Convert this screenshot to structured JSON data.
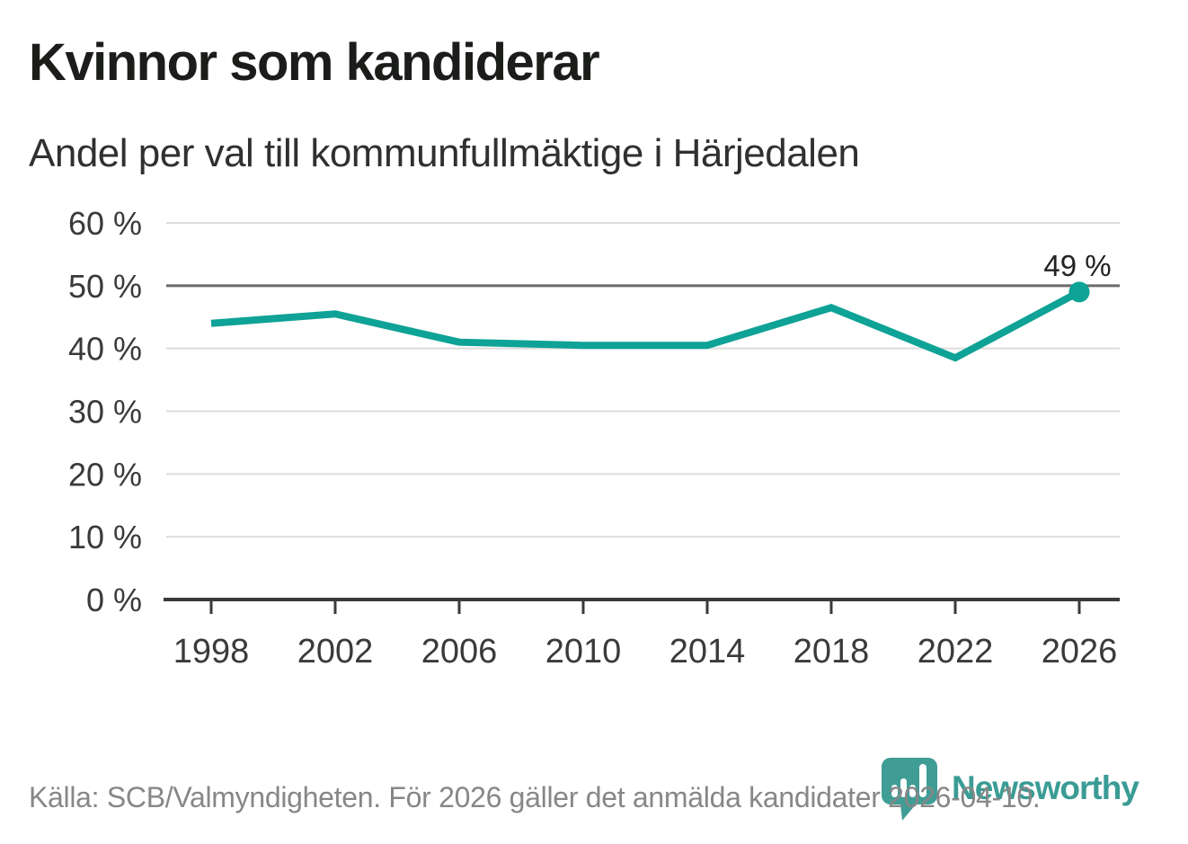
{
  "header": {
    "title": "Kvinnor som kandiderar",
    "subtitle": "Andel per val till kommunfullmäktige i Härjedalen"
  },
  "chart_data": {
    "type": "line",
    "title": "Kvinnor som kandiderar",
    "subtitle": "Andel per val till kommunfullmäktige i Härjedalen",
    "categories": [
      "1998",
      "2002",
      "2006",
      "2010",
      "2014",
      "2018",
      "2022",
      "2026"
    ],
    "values": [
      44,
      45.5,
      41,
      40.5,
      40.5,
      46.5,
      38.5,
      49
    ],
    "end_point_label": "49 %",
    "xlabel": "",
    "ylabel": "",
    "ylim": [
      0,
      60
    ],
    "y_tick_values": [
      0,
      10,
      20,
      30,
      40,
      50,
      60
    ],
    "y_tick_labels": [
      "0 %",
      "10 %",
      "20 %",
      "30 %",
      "40 %",
      "50 %",
      "60 %"
    ],
    "reference_line_value": 50,
    "grid": "horizontal",
    "legend": "none",
    "colors": {
      "line": "#0FA296",
      "end_dot": "#0FA296",
      "grid": "#DCDCDC",
      "reference_line": "#6B6B6B",
      "axis": "#3A3A3A",
      "tick_label": "#3A3A3A",
      "end_label": "#222222"
    }
  },
  "footer": {
    "source_text": "Källa: SCB/Valmyndigheten. För 2026 gäller det anmälda kandidater 2026-04-10.",
    "brand_name": "Newsworthy",
    "brand_color": "#3A9C94",
    "brand_icon_color": "#3F9D95"
  }
}
